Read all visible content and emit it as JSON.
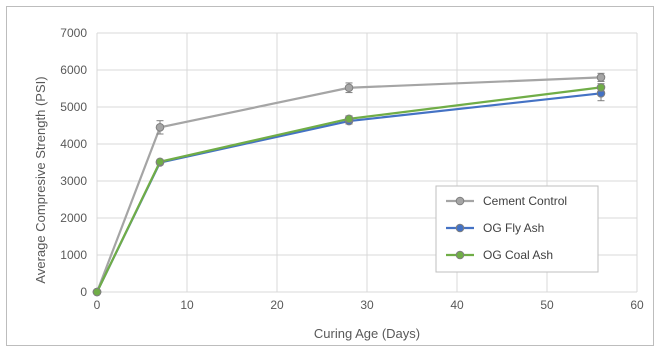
{
  "chart_data": {
    "type": "line",
    "title": "",
    "xlabel": "Curing Age (Days)",
    "ylabel": "Average Compresive Strength (PSI)",
    "xlim": [
      0,
      60
    ],
    "ylim": [
      0,
      7000
    ],
    "xticks": [
      0,
      10,
      20,
      30,
      40,
      50,
      60
    ],
    "yticks": [
      0,
      1000,
      2000,
      3000,
      4000,
      5000,
      6000,
      7000
    ],
    "grid": true,
    "legend_position": "bottom-right",
    "series": [
      {
        "name": "Cement Control",
        "color": "#a5a5a5",
        "x": [
          0,
          7,
          28,
          56
        ],
        "y": [
          0,
          4450,
          5520,
          5800
        ],
        "error": [
          0,
          180,
          130,
          110
        ]
      },
      {
        "name": "OG Fly Ash",
        "color": "#4472c4",
        "x": [
          0,
          7,
          28,
          56
        ],
        "y": [
          0,
          3500,
          4620,
          5370
        ],
        "error": [
          0,
          60,
          80,
          200
        ]
      },
      {
        "name": "OG Coal Ash",
        "color": "#70ad47",
        "x": [
          0,
          7,
          28,
          56
        ],
        "y": [
          0,
          3520,
          4680,
          5530
        ],
        "error": [
          0,
          50,
          80,
          100
        ]
      }
    ]
  }
}
